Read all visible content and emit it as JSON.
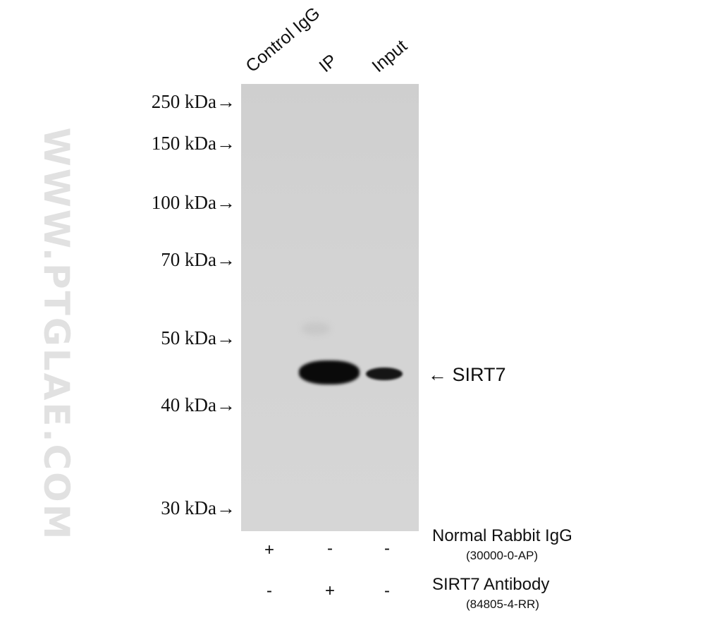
{
  "lanes": [
    "Control IgG",
    "IP",
    "Input"
  ],
  "markers": [
    "250 kDa→",
    "150 kDa→",
    "100 kDa→",
    "70 kDa→",
    "50 kDa→",
    "40 kDa→",
    "30 kDa→"
  ],
  "band_label": "← SIRT7",
  "watermark": "WWW.PTGLAE.COM",
  "rows": [
    {
      "reagent": "Normal Rabbit IgG",
      "catalog": "(30000-0-AP)",
      "signs": [
        "+",
        "-",
        "-"
      ]
    },
    {
      "reagent": "SIRT7 Antibody",
      "catalog": "(84805-4-RR)",
      "signs": [
        "-",
        "+",
        "-"
      ]
    }
  ]
}
